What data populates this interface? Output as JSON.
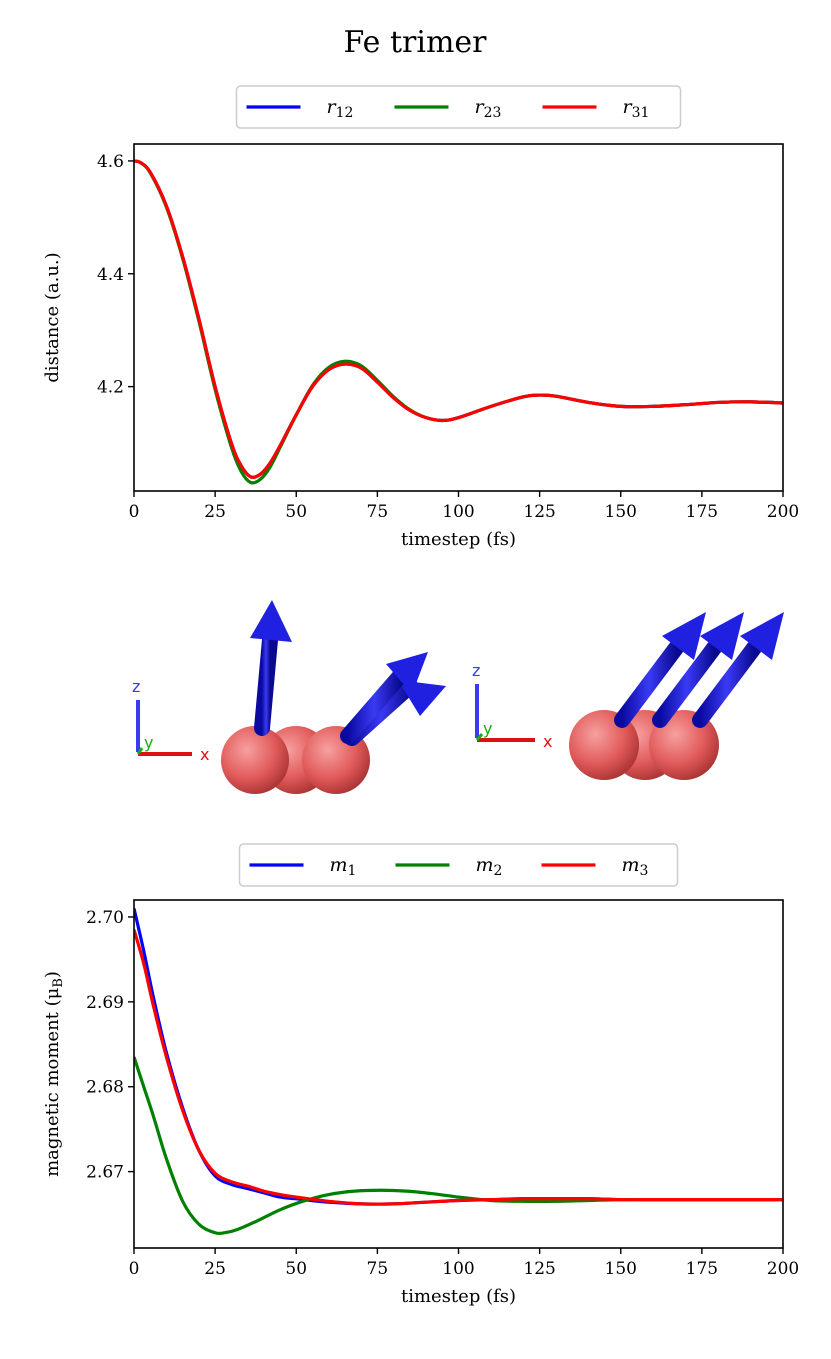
{
  "title": "Fe trimer",
  "colors": {
    "blue": "#0000ff",
    "green": "#008000",
    "red": "#ff0000",
    "atom": "#e86464",
    "arrow": "#1a1adf"
  },
  "axis_letters": {
    "x": "x",
    "y": "y",
    "z": "z"
  },
  "chart_data": [
    {
      "type": "line",
      "xlabel": "timestep (fs)",
      "ylabel": "distance (a.u.)",
      "xlim": [
        0,
        200
      ],
      "ylim": [
        4.015,
        4.63
      ],
      "xticks": [
        0,
        25,
        50,
        75,
        100,
        125,
        150,
        175,
        200
      ],
      "yticks": [
        4.2,
        4.4,
        4.6
      ],
      "ytick_labels": [
        "4.2",
        "4.4",
        "4.6"
      ],
      "legend_position": "top-center",
      "series": [
        {
          "name": "r",
          "sub": "12",
          "color": "#0000ff",
          "x": [
            0,
            2,
            5,
            10,
            15,
            20,
            25,
            30,
            33,
            36,
            39,
            42,
            45,
            50,
            55,
            60,
            65,
            70,
            75,
            80,
            85,
            90,
            95,
            100,
            110,
            120,
            125,
            130,
            140,
            150,
            160,
            170,
            180,
            190,
            200
          ],
          "y": [
            4.6,
            4.597,
            4.58,
            4.52,
            4.43,
            4.32,
            4.2,
            4.1,
            4.06,
            4.04,
            4.045,
            4.065,
            4.095,
            4.15,
            4.2,
            4.23,
            4.24,
            4.233,
            4.208,
            4.18,
            4.158,
            4.145,
            4.14,
            4.145,
            4.165,
            4.182,
            4.185,
            4.183,
            4.172,
            4.165,
            4.165,
            4.168,
            4.172,
            4.173,
            4.171
          ]
        },
        {
          "name": "r",
          "sub": "23",
          "color": "#008000",
          "x": [
            0,
            2,
            5,
            10,
            15,
            20,
            25,
            30,
            33,
            36,
            39,
            42,
            45,
            50,
            55,
            60,
            65,
            70,
            75,
            80,
            85,
            90,
            95,
            100,
            110,
            120,
            125,
            130,
            140,
            150,
            160,
            170,
            180,
            190,
            200
          ],
          "y": [
            4.6,
            4.597,
            4.579,
            4.518,
            4.427,
            4.316,
            4.195,
            4.093,
            4.05,
            4.03,
            4.036,
            4.058,
            4.092,
            4.15,
            4.202,
            4.234,
            4.245,
            4.237,
            4.211,
            4.182,
            4.159,
            4.145,
            4.14,
            4.145,
            4.165,
            4.182,
            4.185,
            4.183,
            4.172,
            4.165,
            4.165,
            4.168,
            4.172,
            4.173,
            4.171
          ]
        },
        {
          "name": "r",
          "sub": "31",
          "color": "#ff0000",
          "x": [
            0,
            2,
            5,
            10,
            15,
            20,
            25,
            30,
            33,
            36,
            39,
            42,
            45,
            50,
            55,
            60,
            65,
            70,
            75,
            80,
            85,
            90,
            95,
            100,
            110,
            120,
            125,
            130,
            140,
            150,
            160,
            170,
            180,
            190,
            200
          ],
          "y": [
            4.6,
            4.597,
            4.58,
            4.52,
            4.43,
            4.32,
            4.2,
            4.1,
            4.06,
            4.04,
            4.045,
            4.065,
            4.095,
            4.15,
            4.2,
            4.23,
            4.24,
            4.233,
            4.208,
            4.18,
            4.158,
            4.145,
            4.14,
            4.145,
            4.165,
            4.182,
            4.185,
            4.183,
            4.172,
            4.165,
            4.165,
            4.168,
            4.172,
            4.173,
            4.171
          ]
        }
      ]
    },
    {
      "type": "line",
      "xlabel": "timestep (fs)",
      "ylabel": "magnetic moment (μ",
      "ylabel_sub": "B",
      "xlim": [
        0,
        200
      ],
      "ylim": [
        2.661,
        2.702
      ],
      "xticks": [
        0,
        25,
        50,
        75,
        100,
        125,
        150,
        175,
        200
      ],
      "yticks": [
        2.67,
        2.68,
        2.69,
        2.7
      ],
      "ytick_labels": [
        "2.67",
        "2.68",
        "2.69",
        "2.70"
      ],
      "legend_position": "top-center",
      "series": [
        {
          "name": "m",
          "sub": "1",
          "color": "#0000ff",
          "x": [
            0,
            3,
            6,
            10,
            15,
            20,
            25,
            30,
            35,
            40,
            45,
            50,
            60,
            70,
            80,
            90,
            100,
            110,
            120,
            130,
            140,
            150,
            160,
            170,
            180,
            190,
            200
          ],
          "y": [
            2.701,
            2.696,
            2.6905,
            2.684,
            2.6775,
            2.6725,
            2.6695,
            2.6685,
            2.668,
            2.6675,
            2.667,
            2.6668,
            2.6664,
            2.6662,
            2.6662,
            2.6664,
            2.6666,
            2.6667,
            2.6668,
            2.6668,
            2.6668,
            2.6667,
            2.6667,
            2.6667,
            2.6667,
            2.6667,
            2.6667
          ]
        },
        {
          "name": "m",
          "sub": "2",
          "color": "#008000",
          "x": [
            0,
            3,
            6,
            10,
            15,
            20,
            25,
            28,
            32,
            38,
            45,
            52,
            60,
            68,
            76,
            84,
            92,
            100,
            110,
            120,
            130,
            140,
            150,
            160,
            170,
            180,
            190,
            200
          ],
          "y": [
            2.6835,
            2.68,
            2.6765,
            2.6715,
            2.6665,
            2.6638,
            2.6628,
            2.6628,
            2.6632,
            2.6642,
            2.6655,
            2.6665,
            2.6673,
            2.6677,
            2.6678,
            2.6677,
            2.6674,
            2.667,
            2.6666,
            2.6665,
            2.6665,
            2.6666,
            2.6667,
            2.6667,
            2.6667,
            2.6667,
            2.6667,
            2.6667
          ]
        },
        {
          "name": "m",
          "sub": "3",
          "color": "#ff0000",
          "x": [
            0,
            3,
            6,
            10,
            15,
            20,
            25,
            30,
            35,
            40,
            45,
            50,
            60,
            70,
            80,
            90,
            100,
            110,
            120,
            130,
            140,
            150,
            160,
            170,
            180,
            190,
            200
          ],
          "y": [
            2.6985,
            2.6945,
            2.6895,
            2.6835,
            2.6772,
            2.6725,
            2.6698,
            2.6688,
            2.6683,
            2.6677,
            2.6673,
            2.667,
            2.6665,
            2.6662,
            2.6662,
            2.6664,
            2.6666,
            2.6667,
            2.6668,
            2.6668,
            2.6668,
            2.6667,
            2.6667,
            2.6667,
            2.6667,
            2.6667,
            2.6667
          ]
        }
      ]
    }
  ]
}
